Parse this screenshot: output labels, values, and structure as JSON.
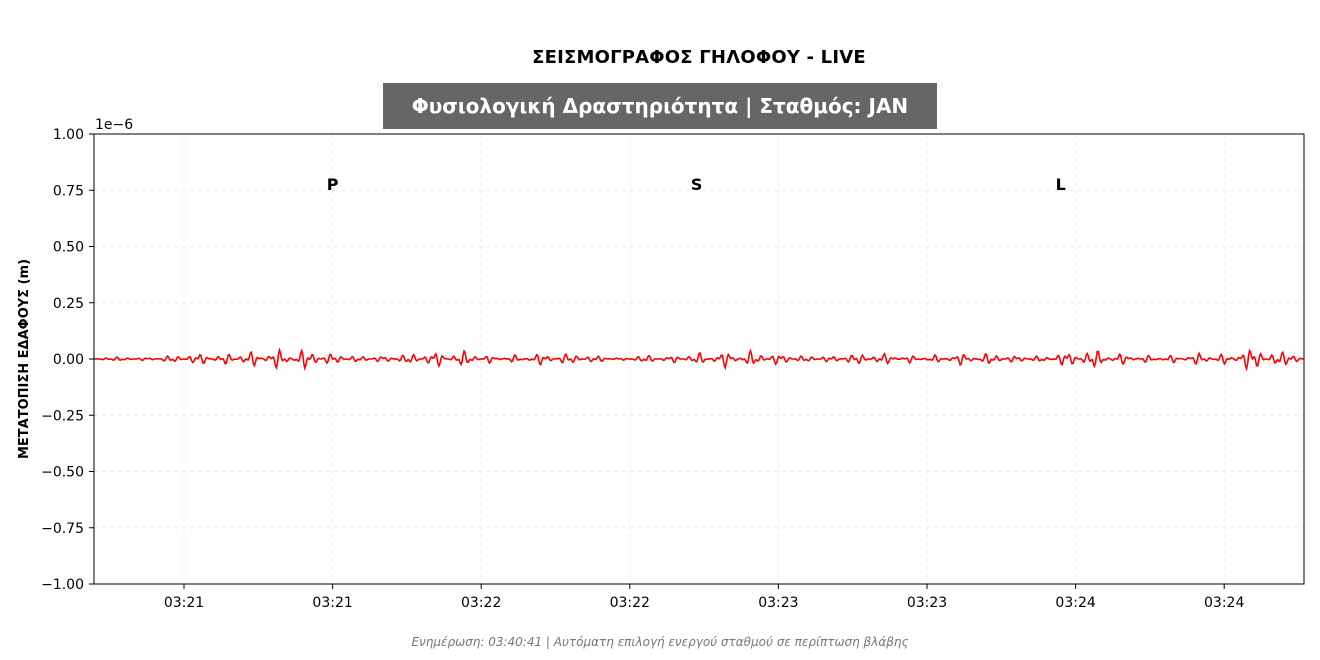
{
  "title": "ΣΕΙΣΜΟΓΡΑΦΟΣ ΓΗΛΟΦΟΥ - LIVE",
  "banner": "Φυσιολογική Δραστηριότητα | Σταθμός: JAN",
  "footer": "Ενημέρωση: 03:40:41 | Αυτόματη επιλογή ενεργού σταθμού σε περίπτωση βλάβης",
  "colors": {
    "trace": "#ff0000",
    "banner_bg": "#666666",
    "grid": "#e6e6e6"
  },
  "chart_data": {
    "type": "line",
    "title": "ΣΕΙΣΜΟΓΡΑΦΟΣ ΓΗΛΟΦΟΥ - LIVE",
    "ylabel": "ΜΕΤΑΤΟΠΙΣΗ ΕΔΑΦΟΥΣ (m)",
    "xlabel": "",
    "y_offset_label": "1e−6",
    "ylim": [
      -1.0,
      1.0
    ],
    "yticks": [
      "1.00",
      "0.75",
      "0.50",
      "0.25",
      "0.00",
      "−0.25",
      "−0.50",
      "−0.75",
      "−1.00"
    ],
    "xtick_labels": [
      "03:21",
      "03:21",
      "03:22",
      "03:22",
      "03:23",
      "03:23",
      "03:24",
      "03:24"
    ],
    "grid": true,
    "phase_markers": [
      {
        "label": "P",
        "tick_position": 1.0
      },
      {
        "label": "S",
        "tick_position": 3.45
      },
      {
        "label": "L",
        "tick_position": 5.9
      }
    ],
    "series": [
      {
        "color": "#ff0000",
        "description_values": "noise around 0 with amplitude about ±0.05",
        "values": [
          0.0,
          0.01,
          -0.01,
          0.02,
          -0.03,
          0.03,
          -0.04,
          0.05,
          -0.05,
          0.03,
          -0.02,
          0.02,
          -0.03,
          0.04,
          -0.04,
          0.02,
          -0.02,
          0.03,
          -0.03,
          0.02,
          -0.01,
          0.02,
          -0.02,
          0.03,
          -0.04,
          0.04,
          -0.03,
          0.02,
          -0.02,
          0.03,
          -0.03,
          0.02,
          -0.02,
          0.03,
          -0.03,
          0.02,
          -0.02,
          0.04,
          -0.05,
          0.03,
          -0.02,
          0.02,
          -0.03,
          0.03,
          -0.06,
          0.04,
          0.0
        ]
      }
    ]
  }
}
